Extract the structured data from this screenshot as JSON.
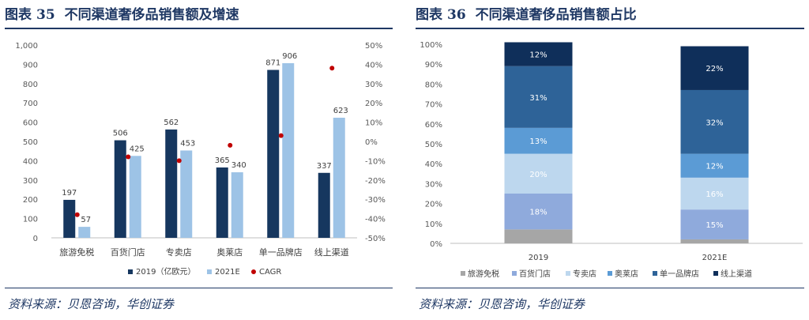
{
  "left": {
    "fig_label": "图表",
    "fig_num": "35",
    "title": "不同渠道奢侈品销售额及增速",
    "source": "资料来源：贝恩咨询，华创证券"
  },
  "right": {
    "fig_label": "图表",
    "fig_num": "36",
    "title": "不同渠道奢侈品销售额占比",
    "source": "资料来源：贝恩咨询，华创证券"
  },
  "colors": {
    "navy": "#16375f",
    "light_blue": "#9dc3e6",
    "red": "#c00000",
    "title_blue": "#1f3864",
    "seg_gray": "#a6a6a6",
    "seg_periwinkle": "#8faadc",
    "seg_pale": "#bdd7ee",
    "seg_mid": "#5b9bd5",
    "seg_steel": "#2e6398",
    "seg_dark": "#0f2f5a"
  },
  "chart_data": [
    {
      "type": "bar",
      "categories": [
        "旅游免税",
        "百货门店",
        "专卖店",
        "奥莱店",
        "单一品牌店",
        "线上渠道"
      ],
      "series": [
        {
          "name": "2019（亿欧元）",
          "values": [
            197,
            506,
            562,
            365,
            871,
            337
          ],
          "labels": [
            "197",
            "506",
            "562",
            "365",
            "871",
            "337"
          ],
          "color": "#16375f"
        },
        {
          "name": "2021E",
          "values": [
            57,
            425,
            453,
            340,
            906,
            623
          ],
          "labels": "57|425|453|340|906|623",
          "color": "#9dc3e6"
        },
        {
          "name": "CAGR",
          "type": "scatter",
          "axis": "right",
          "values": [
            -38,
            -8,
            -10,
            -2,
            3,
            38
          ],
          "color": "#c00000"
        }
      ],
      "ylim": [
        0,
        1000
      ],
      "yticks": [
        "0",
        "100",
        "200",
        "300",
        "400",
        "500",
        "600",
        "700",
        "800",
        "900",
        "1,000"
      ],
      "y2lim": [
        -50,
        50
      ],
      "y2ticks": [
        "-50%",
        "-40%",
        "-30%",
        "-20%",
        "-10%",
        "0%",
        "10%",
        "20%",
        "30%",
        "40%",
        "50%"
      ],
      "legend_position": "bottom"
    },
    {
      "type": "bar",
      "stacked": true,
      "categories": [
        "2019",
        "2021E"
      ],
      "series": [
        {
          "name": "旅游免税",
          "values": [
            7,
            2
          ],
          "label": [
            "",
            ""
          ],
          "color": "#a6a6a6"
        },
        {
          "name": "百货门店",
          "values": [
            18,
            15
          ],
          "label": [
            "18%",
            "15%"
          ],
          "color": "#8faadc"
        },
        {
          "name": "专卖店",
          "values": [
            20,
            16
          ],
          "label": [
            "20%",
            "16%"
          ],
          "color": "#bdd7ee"
        },
        {
          "name": "奥莱店",
          "values": [
            13,
            12
          ],
          "label": [
            "13%",
            "12%"
          ],
          "color": "#5b9bd5"
        },
        {
          "name": "单一品牌店",
          "values": [
            31,
            32
          ],
          "label": [
            "31%",
            "32%"
          ],
          "color": "#2e6398"
        },
        {
          "name": "线上渠道",
          "values": [
            12,
            22
          ],
          "label": [
            "12%",
            "22%"
          ],
          "color": "#0f2f5a"
        }
      ],
      "ylim": [
        0,
        100
      ],
      "yticks": [
        "0%",
        "10%",
        "20%",
        "30%",
        "40%",
        "50%",
        "60%",
        "70%",
        "80%",
        "90%",
        "100%"
      ],
      "legend_position": "bottom"
    }
  ]
}
